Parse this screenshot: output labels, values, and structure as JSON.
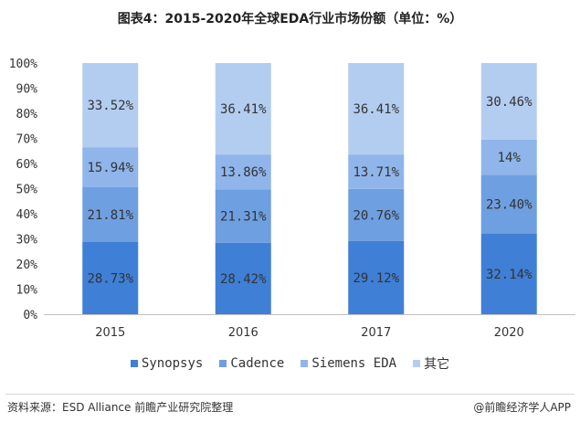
{
  "title": "图表4：2015-2020年全球EDA行业市场份额（单位：%）",
  "source_text": "资料来源：ESD Alliance  前瞻产业研究院整理",
  "credit_text": "@前瞻经济学人APP",
  "colors": {
    "synopsys": "#3f7fd6",
    "cadence": "#6e9fe0",
    "siemens": "#8fb5ea",
    "other": "#b3cdf1",
    "axis": "#bfbfbf",
    "label": "#333333"
  },
  "chart_data": {
    "type": "bar",
    "stacked": true,
    "categories": [
      "2015",
      "2016",
      "2017",
      "2020"
    ],
    "series": [
      {
        "name": "Synopsys",
        "values": [
          28.73,
          28.42,
          29.12,
          32.14
        ],
        "labels": [
          "28.73%",
          "28.42%",
          "29.12%",
          "32.14%"
        ],
        "color": "#3f7fd6"
      },
      {
        "name": "Cadence",
        "values": [
          21.81,
          21.31,
          20.76,
          23.4
        ],
        "labels": [
          "21.81%",
          "21.31%",
          "20.76%",
          "23.40%"
        ],
        "color": "#6e9fe0"
      },
      {
        "name": "Siemens EDA",
        "values": [
          15.94,
          13.86,
          13.71,
          14.0
        ],
        "labels": [
          "15.94%",
          "13.86%",
          "13.71%",
          "14%"
        ],
        "color": "#8fb5ea"
      },
      {
        "name": "其它",
        "values": [
          33.52,
          36.41,
          36.41,
          30.46
        ],
        "labels": [
          "33.52%",
          "36.41%",
          "36.41%",
          "30.46%"
        ],
        "color": "#b3cdf1"
      }
    ],
    "y_ticks": [
      "0%",
      "10%",
      "20%",
      "30%",
      "40%",
      "50%",
      "60%",
      "70%",
      "80%",
      "90%",
      "100%"
    ],
    "ylim": [
      0,
      100
    ],
    "grid": false,
    "legend_position": "bottom"
  }
}
